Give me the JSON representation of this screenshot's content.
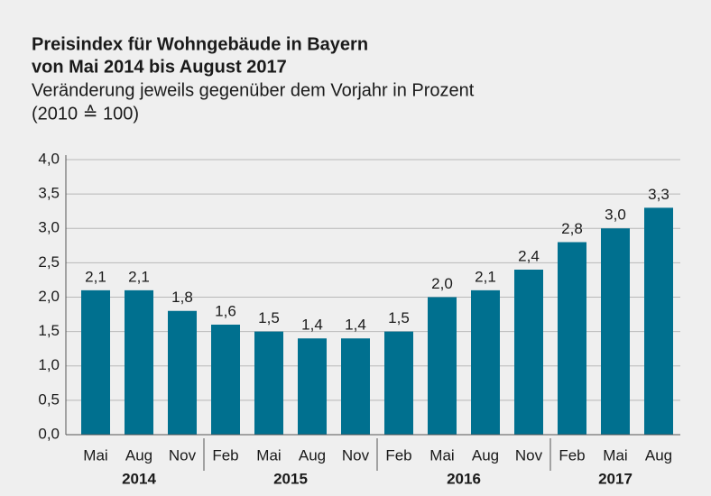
{
  "chart_data": {
    "type": "bar",
    "title": [
      "Preisindex für Wohngebäude in Bayern",
      "von Mai 2014 bis August 2017"
    ],
    "subtitle": [
      "Veränderung jeweils gegenüber dem Vorjahr in Prozent",
      "(2010 ≙ 100)"
    ],
    "color": "#00708f",
    "groups": [
      {
        "label": "2014",
        "categories": [
          "Mai",
          "Aug",
          "Nov"
        ],
        "values": [
          2.1,
          2.1,
          1.8
        ],
        "value_labels": [
          "2,1",
          "2,1",
          "1,8"
        ]
      },
      {
        "label": "2015",
        "categories": [
          "Feb",
          "Mai",
          "Aug",
          "Nov"
        ],
        "values": [
          1.6,
          1.5,
          1.4,
          1.4
        ],
        "value_labels": [
          "1,6",
          "1,5",
          "1,4",
          "1,4"
        ]
      },
      {
        "label": "2016",
        "categories": [
          "Feb",
          "Mai",
          "Aug",
          "Nov"
        ],
        "values": [
          1.5,
          2.0,
          2.1,
          2.4
        ],
        "value_labels": [
          "1,5",
          "2,0",
          "2,1",
          "2,4"
        ]
      },
      {
        "label": "2017",
        "categories": [
          "Feb",
          "Mai",
          "Aug"
        ],
        "values": [
          2.8,
          3.0,
          3.3
        ],
        "value_labels": [
          "2,8",
          "3,0",
          "3,3"
        ]
      }
    ],
    "ylim": [
      0,
      4
    ],
    "yticks": [
      {
        "value": 0,
        "label": "0,0"
      },
      {
        "value": 0.5,
        "label": "0,5"
      },
      {
        "value": 1,
        "label": "1,0"
      },
      {
        "value": 1.5,
        "label": "1,5"
      },
      {
        "value": 2,
        "label": "2,0"
      },
      {
        "value": 2.5,
        "label": "2,5"
      },
      {
        "value": 3,
        "label": "3,0"
      },
      {
        "value": 3.5,
        "label": "3,5"
      },
      {
        "value": 4,
        "label": "4,0"
      }
    ],
    "grid": true
  }
}
